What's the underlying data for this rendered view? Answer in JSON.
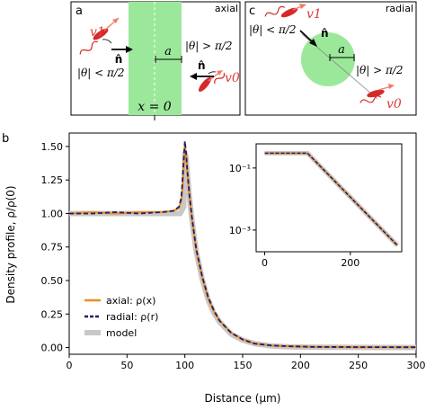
{
  "panels": {
    "a": {
      "letter": "a",
      "title": "axial",
      "x_label": "x = 0",
      "n_label": "n̂",
      "a_label": "a",
      "v1_label": "v1",
      "v0_label": "v0",
      "cond_left": "|θ| < π/2",
      "cond_right": "|θ| > π/2"
    },
    "c": {
      "letter": "c",
      "title": "radial",
      "n_label": "n̂",
      "a_label": "a",
      "v1_label": "v1",
      "v0_label": "v0",
      "cond_left": "|θ| < π/2",
      "cond_right": "|θ| > π/2"
    },
    "b": {
      "letter": "b"
    }
  },
  "colors": {
    "axial": "#f28c1e",
    "radial": "#1c1f6b",
    "model": "#c8c8c8",
    "zone": "#9be89b",
    "bacterium": "#d42a2a"
  },
  "chart_data": [
    {
      "type": "line",
      "xlabel": "Distance (μm)",
      "ylabel": "Density profile, ρ/ρ(0)",
      "xlim": [
        0,
        300
      ],
      "ylim": [
        -0.05,
        1.6
      ],
      "xticks": [
        0,
        50,
        100,
        150,
        200,
        250,
        300
      ],
      "yticks": [
        "0.00",
        "0.25",
        "0.50",
        "0.75",
        "1.00",
        "1.25",
        "1.50"
      ],
      "grid": false,
      "legend_position": "lower-left",
      "series": [
        {
          "name": "axial: ρ(x)",
          "x": [
            0,
            20,
            40,
            60,
            80,
            90,
            95,
            97,
            98,
            99,
            100,
            101,
            102,
            104,
            106,
            108,
            110,
            115,
            120,
            125,
            130,
            140,
            150,
            160,
            175,
            190,
            210,
            250,
            300
          ],
          "y": [
            1.0,
            1.01,
            1.0,
            1.01,
            1.01,
            1.02,
            1.04,
            1.1,
            1.2,
            1.35,
            1.5,
            1.44,
            1.33,
            1.13,
            0.97,
            0.84,
            0.72,
            0.52,
            0.37,
            0.27,
            0.2,
            0.11,
            0.06,
            0.03,
            0.015,
            0.01,
            0.005,
            0.003,
            0.002
          ]
        },
        {
          "name": "radial: ρ(r)",
          "x": [
            0,
            20,
            40,
            60,
            80,
            90,
            95,
            97,
            98,
            99,
            100,
            101,
            102,
            104,
            106,
            108,
            110,
            115,
            120,
            125,
            130,
            140,
            150,
            160,
            175,
            190,
            210,
            250,
            300
          ],
          "y": [
            1.0,
            1.0,
            1.01,
            1.0,
            1.01,
            1.02,
            1.05,
            1.12,
            1.25,
            1.4,
            1.54,
            1.46,
            1.34,
            1.14,
            0.98,
            0.85,
            0.73,
            0.53,
            0.38,
            0.28,
            0.2,
            0.11,
            0.06,
            0.03,
            0.015,
            0.01,
            0.005,
            0.003,
            0.002
          ]
        },
        {
          "name": "model",
          "x": [
            0,
            50,
            96,
            99,
            100,
            101,
            102,
            104,
            106,
            108,
            110,
            115,
            120,
            125,
            130,
            140,
            150,
            160,
            175,
            190,
            210,
            250,
            300
          ],
          "y": [
            1.0,
            1.0,
            1.0,
            1.05,
            1.45,
            1.42,
            1.32,
            1.12,
            0.96,
            0.83,
            0.71,
            0.51,
            0.36,
            0.26,
            0.19,
            0.1,
            0.055,
            0.03,
            0.012,
            0.006,
            0.003,
            0.001,
            0.0
          ]
        }
      ]
    },
    {
      "type": "line",
      "title": "",
      "xlim": [
        -20,
        320
      ],
      "yscale": "log",
      "ylim": [
        0.0002,
        0.6
      ],
      "xticks": [
        0,
        200
      ],
      "yticks": [
        "10⁻¹",
        "10⁻³"
      ],
      "series": [
        {
          "name": "axial",
          "x": [
            0,
            100,
            310
          ],
          "y": [
            0.3,
            0.3,
            0.00032
          ]
        },
        {
          "name": "radial",
          "x": [
            0,
            100,
            310
          ],
          "y": [
            0.3,
            0.3,
            0.00032
          ]
        },
        {
          "name": "model",
          "x": [
            0,
            100,
            310
          ],
          "y": [
            0.3,
            0.3,
            0.00032
          ]
        }
      ]
    }
  ]
}
